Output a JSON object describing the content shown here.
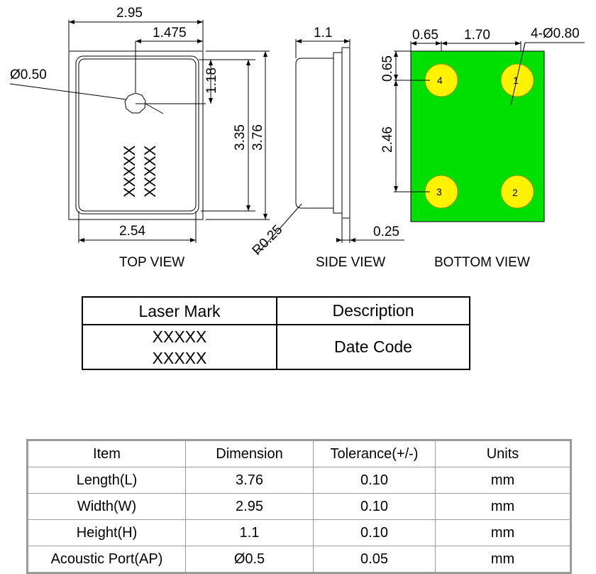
{
  "colors": {
    "pcb": "#00e000",
    "pad": "#fff200",
    "line": "#000000",
    "grid": "#9a9a9a"
  },
  "top_view": {
    "dim_width": "2.95",
    "dim_port_offset": "1.475",
    "dim_port_diameter": "Ø0.50",
    "dim_port_from_top": "1.18",
    "dim_inner_length": "3.35",
    "dim_length": "3.76",
    "dim_inner_width": "2.54",
    "mark_line_1": "XXXXX",
    "mark_line_2": "XXXXX",
    "label": "TOP VIEW"
  },
  "side_view": {
    "dim_height": "1.1",
    "dim_radius": "R0.25",
    "dim_base": "0.25",
    "label": "SIDE VIEW"
  },
  "bottom_view": {
    "dim_pad_offset": "0.65",
    "dim_pad_pitch_x": "1.70",
    "dim_pad_diameter": "4-Ø0.80",
    "dim_pad_offset_y": "0.65",
    "dim_pad_pitch_y": "2.46",
    "pads": [
      "1",
      "2",
      "3",
      "4"
    ],
    "label": "BOTTOM VIEW"
  },
  "laser_mark_table": {
    "headers": [
      "Laser Mark",
      "Description"
    ],
    "mark_line_1": "XXXXX",
    "mark_line_2": "XXXXX",
    "description": "Date Code"
  },
  "spec_table": {
    "headers": [
      "Item",
      "Dimension",
      "Tolerance(+/-)",
      "Units"
    ],
    "rows": [
      [
        "Length(L)",
        "3.76",
        "0.10",
        "mm"
      ],
      [
        "Width(W)",
        "2.95",
        "0.10",
        "mm"
      ],
      [
        "Height(H)",
        "1.1",
        "0.10",
        "mm"
      ],
      [
        "Acoustic Port(AP)",
        "Ø0.5",
        "0.05",
        "mm"
      ]
    ]
  }
}
